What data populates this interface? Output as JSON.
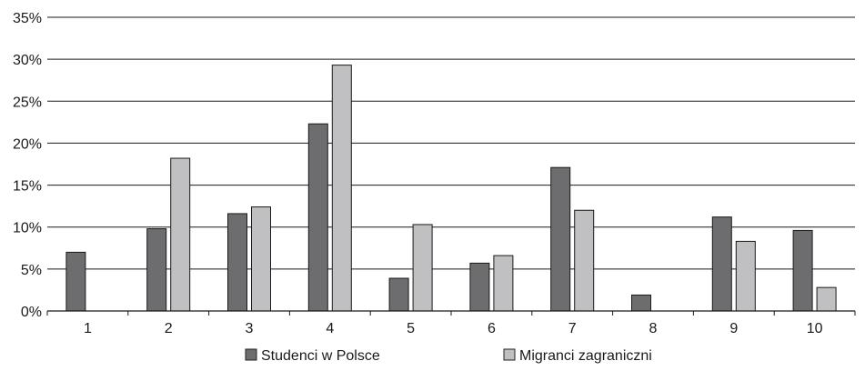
{
  "chart_data": {
    "type": "bar",
    "categories": [
      "1",
      "2",
      "3",
      "4",
      "5",
      "6",
      "7",
      "8",
      "9",
      "10"
    ],
    "series": [
      {
        "name": "Studenci w Polsce",
        "color": "#6d6d6f",
        "values": [
          7.0,
          9.8,
          11.6,
          22.3,
          3.9,
          5.7,
          17.1,
          1.9,
          11.2,
          9.6
        ]
      },
      {
        "name": "Migranci zagraniczni",
        "color": "#c0c0c2",
        "values": [
          0,
          18.2,
          12.4,
          29.3,
          10.3,
          6.6,
          12.0,
          0,
          8.3,
          2.8
        ]
      }
    ],
    "ylim": [
      0,
      35
    ],
    "yticks": [
      0,
      5,
      10,
      15,
      20,
      25,
      30,
      35
    ],
    "ytick_labels": [
      "0%",
      "5%",
      "10%",
      "15%",
      "20%",
      "25%",
      "30%",
      "35%"
    ],
    "grid": true,
    "legend_position": "bottom",
    "title": "",
    "xlabel": "",
    "ylabel": ""
  }
}
